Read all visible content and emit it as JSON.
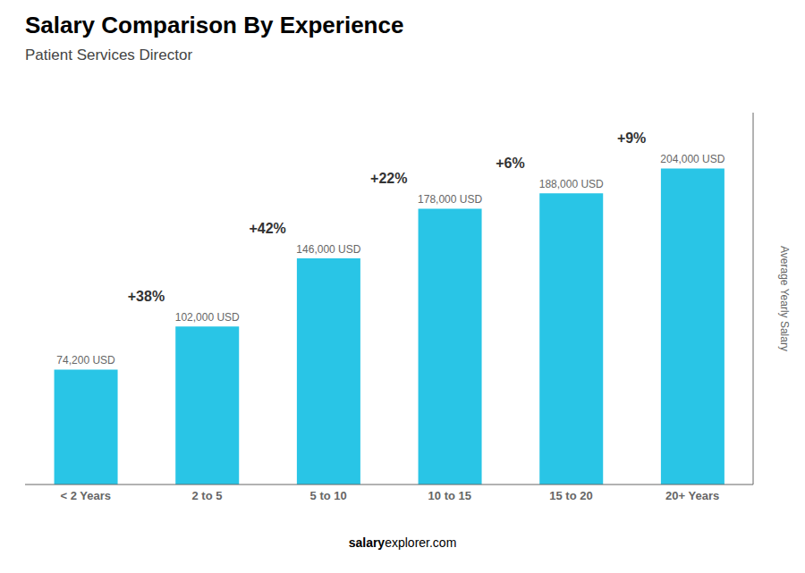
{
  "chart_data": {
    "type": "bar",
    "title": "Salary Comparison By Experience",
    "subtitle": "Patient Services Director",
    "categories": [
      "< 2 Years",
      "2 to 5",
      "5 to 10",
      "10 to 15",
      "15 to 20",
      "20+ Years"
    ],
    "values": [
      74200,
      102000,
      146000,
      178000,
      188000,
      204000
    ],
    "value_labels": [
      "74,200 USD",
      "102,000 USD",
      "146,000 USD",
      "178,000 USD",
      "188,000 USD",
      "204,000 USD"
    ],
    "data_labels": true,
    "color": "#29C5E6",
    "ylabel": "Average Yearly Salary",
    "ylim": [
      0,
      240000
    ],
    "tick_labels": "x",
    "annotations": [
      "+38%",
      "+42%",
      "+22%",
      "+6%",
      "+9%"
    ],
    "footer": [
      "salary",
      "explorer.com"
    ]
  }
}
